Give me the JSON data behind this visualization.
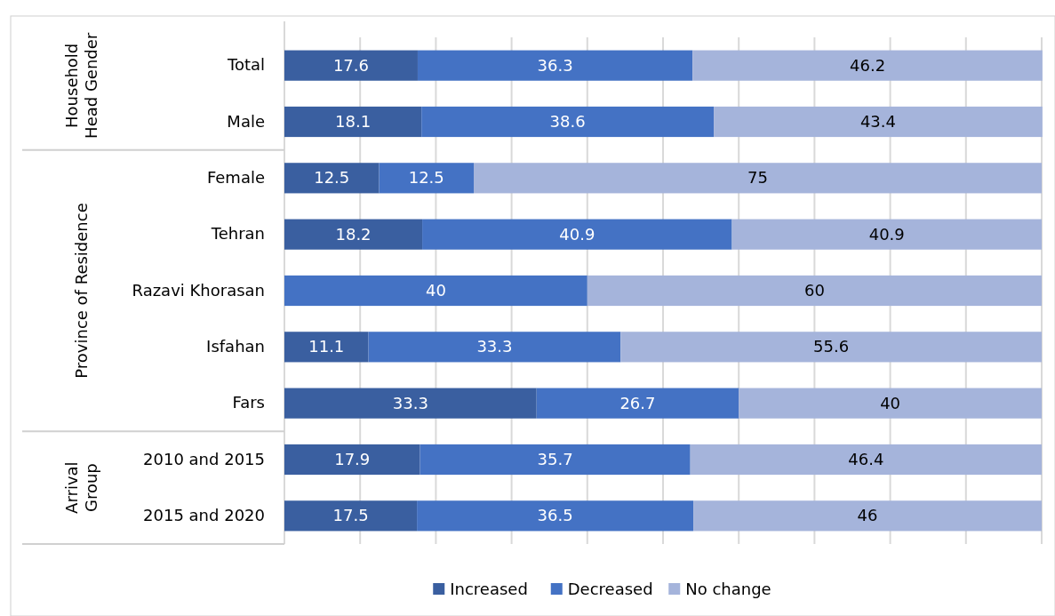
{
  "chart_data": {
    "type": "bar",
    "orientation": "horizontal",
    "stacked": true,
    "categories": [
      "Total",
      "Male",
      "Female",
      "Tehran",
      "Razavi Khorasan",
      "Isfahan",
      "Fars",
      "2010 and 2015",
      "2015 and 2020"
    ],
    "series": [
      {
        "name": "Increased",
        "color": "#3a5fa0",
        "values": [
          17.6,
          18.1,
          12.5,
          18.2,
          0,
          11.1,
          33.3,
          17.9,
          17.5
        ],
        "value_labels": [
          "17.6",
          "18.1",
          "12.5",
          "18.2",
          null,
          "11.1",
          "33.3",
          "17.9",
          "17.5"
        ]
      },
      {
        "name": "Decreased",
        "color": "#4472c4",
        "values": [
          36.3,
          38.6,
          12.5,
          40.9,
          40,
          33.3,
          26.7,
          35.7,
          36.5
        ],
        "value_labels": [
          "36.3",
          "38.6",
          "12.5",
          "40.9",
          "40",
          "33.3",
          "26.7",
          "35.7",
          "36.5"
        ]
      },
      {
        "name": "No change",
        "color": "#a5b4db",
        "values": [
          46.2,
          43.4,
          75,
          40.9,
          60,
          55.6,
          40,
          46.4,
          46
        ],
        "value_labels": [
          "46.2",
          "43.4",
          "75",
          "40.9",
          "60",
          "55.6",
          "40",
          "46.4",
          "46"
        ]
      }
    ],
    "xlim": [
      0,
      100
    ],
    "xticks": [
      {
        "value": 0,
        "label": null
      },
      {
        "value": 10,
        "label": null
      },
      {
        "value": 20,
        "label": null
      },
      {
        "value": 30,
        "label": null
      },
      {
        "value": 40,
        "label": null
      },
      {
        "value": 50,
        "label": null
      },
      {
        "value": 60,
        "label": null
      },
      {
        "value": 70,
        "label": null
      },
      {
        "value": 80,
        "label": null
      },
      {
        "value": 90,
        "label": null
      },
      {
        "value": 100,
        "label": null
      }
    ],
    "grid": "x",
    "tick_labels": "y",
    "legend": "bottom",
    "annotations": [
      "Household Head Gender",
      "Province of Residence",
      "Arrival Group"
    ]
  }
}
